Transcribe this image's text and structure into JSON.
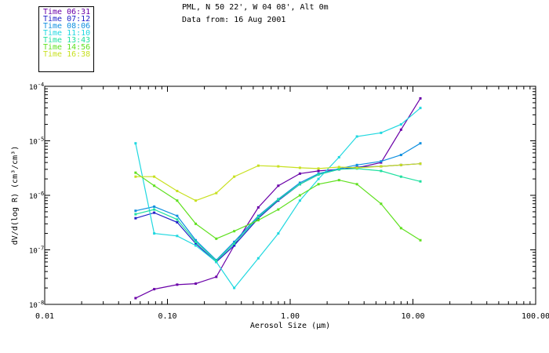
{
  "header": {
    "site": "PML, N 50 22', W 04 08', Alt 0m",
    "date_line": "Data from: 16 Aug 2001"
  },
  "legend": [
    {
      "label": "Time 06:31",
      "color": "#6a00a8"
    },
    {
      "label": "Time 07:12",
      "color": "#2020c8"
    },
    {
      "label": "Time 08:06",
      "color": "#1090e0"
    },
    {
      "label": "Time 11:10",
      "color": "#20d8e0"
    },
    {
      "label": "Time 13:43",
      "color": "#20e0a0"
    },
    {
      "label": "Time 14:56",
      "color": "#60e020"
    },
    {
      "label": "Time 16:38",
      "color": "#c8e020"
    }
  ],
  "chart_data": {
    "type": "line",
    "scale": "log-log",
    "xlabel": "Aerosol Size (µm)",
    "ylabel": "dV/d(log R) (cm³/cm³)",
    "xlim": [
      0.01,
      100
    ],
    "ylim": [
      1e-08,
      0.0001
    ],
    "x_ticks": [
      {
        "value": 0.01,
        "label": "0.01"
      },
      {
        "value": 0.1,
        "label": "0.10"
      },
      {
        "value": 1,
        "label": "1.00"
      },
      {
        "value": 10,
        "label": "10.00"
      },
      {
        "value": 100,
        "label": "100.00"
      }
    ],
    "y_ticks": [
      {
        "value": 1e-08,
        "base": "10",
        "exp": "-8"
      },
      {
        "value": 1e-07,
        "base": "10",
        "exp": "-7"
      },
      {
        "value": 1e-06,
        "base": "10",
        "exp": "-6"
      },
      {
        "value": 1e-05,
        "base": "10",
        "exp": "-5"
      },
      {
        "value": 0.0001,
        "base": "10",
        "exp": "-4"
      }
    ],
    "x": [
      0.055,
      0.078,
      0.12,
      0.17,
      0.25,
      0.35,
      0.55,
      0.8,
      1.2,
      1.7,
      2.5,
      3.5,
      5.5,
      8,
      11.5
    ],
    "series": [
      {
        "name": "Time 06:31",
        "color": "#6a00a8",
        "values": [
          1.3e-08,
          1.9e-08,
          2.3e-08,
          2.4e-08,
          3.2e-08,
          1.2e-07,
          6e-07,
          1.5e-06,
          2.5e-06,
          2.8e-06,
          3e-06,
          3.2e-06,
          4e-06,
          1.6e-05,
          6e-05
        ]
      },
      {
        "name": "Time 07:12",
        "color": "#2020c8",
        "values": [
          3.8e-07,
          4.8e-07,
          3.2e-07,
          1.3e-07,
          6e-08,
          1.2e-07,
          3.8e-07,
          8e-07,
          1.6e-06,
          2.4e-06,
          3e-06,
          3.3e-06,
          3.4e-06,
          3.6e-06,
          3.8e-06
        ]
      },
      {
        "name": "Time 08:06",
        "color": "#1090e0",
        "values": [
          5.2e-07,
          6.2e-07,
          4.2e-07,
          1.5e-07,
          6.5e-08,
          1.4e-07,
          4.2e-07,
          8.5e-07,
          1.7e-06,
          2.5e-06,
          3.1e-06,
          3.6e-06,
          4.2e-06,
          5.5e-06,
          9e-06
        ]
      },
      {
        "name": "Time 11:10",
        "color": "#20d8e0",
        "values": [
          9e-06,
          2e-07,
          1.8e-07,
          1.2e-07,
          6e-08,
          2e-08,
          7e-08,
          2e-07,
          8e-07,
          2e-06,
          5e-06,
          1.2e-05,
          1.4e-05,
          2e-05,
          4e-05
        ]
      },
      {
        "name": "Time 13:43",
        "color": "#20e0a0",
        "values": [
          4.5e-07,
          5.5e-07,
          3.6e-07,
          1.4e-07,
          6.3e-08,
          1.3e-07,
          4e-07,
          8.3e-07,
          1.6e-06,
          2.4e-06,
          3e-06,
          3.1e-06,
          2.8e-06,
          2.2e-06,
          1.8e-06
        ]
      },
      {
        "name": "Time 14:56",
        "color": "#60e020",
        "values": [
          2.6e-06,
          1.5e-06,
          8e-07,
          3e-07,
          1.6e-07,
          2.2e-07,
          3.5e-07,
          5.5e-07,
          1e-06,
          1.6e-06,
          1.9e-06,
          1.6e-06,
          7e-07,
          2.5e-07,
          1.5e-07
        ]
      },
      {
        "name": "Time 16:38",
        "color": "#c8e020",
        "values": [
          2.2e-06,
          2.2e-06,
          1.2e-06,
          8e-07,
          1.1e-06,
          2.2e-06,
          3.5e-06,
          3.4e-06,
          3.2e-06,
          3.1e-06,
          3.3e-06,
          3.2e-06,
          3.4e-06,
          3.6e-06,
          3.8e-06
        ]
      }
    ]
  }
}
